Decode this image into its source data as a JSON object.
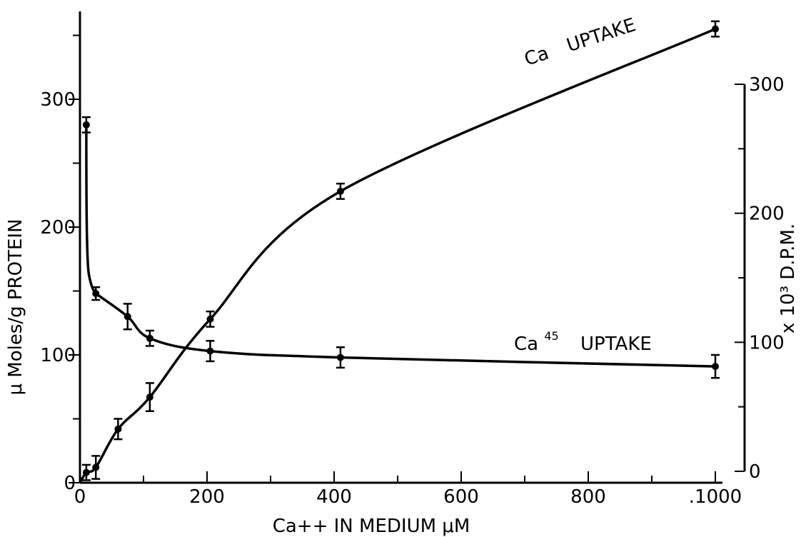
{
  "chart_data": {
    "type": "line",
    "xlabel": "Ca++ IN MEDIUM μM",
    "ylabel_left": "μ Moles/g PROTEIN",
    "ylabel_right": "x 10³ D.P.M.",
    "xlim": [
      0,
      1000
    ],
    "ylim_left": [
      0,
      360
    ],
    "ylim_right": [
      0,
      300
    ],
    "x_ticks": [
      "0",
      "200",
      "400",
      "600",
      "800",
      "1000"
    ],
    "x_ticks_display": [
      "0",
      "200",
      "400",
      "600",
      "800",
      ".1000"
    ],
    "y_left_ticks": [
      0,
      100,
      200,
      300
    ],
    "y_right_ticks": [
      0,
      100,
      200,
      300
    ],
    "grid": false,
    "series": [
      {
        "name": "Ca UPTAKE",
        "label_prefix": "Ca",
        "label_suffix": "UPTAKE",
        "axis": "left",
        "x": [
          10,
          25,
          60,
          110,
          205,
          410,
          1000
        ],
        "y": [
          8,
          12,
          42,
          67,
          128,
          228,
          355
        ],
        "err": [
          6,
          9,
          8,
          11,
          6,
          6,
          6
        ]
      },
      {
        "name": "Ca45 UPTAKE",
        "label_prefix": "Ca",
        "label_sup": "45",
        "label_suffix": "UPTAKE",
        "axis": "left",
        "x": [
          10,
          25,
          75,
          110,
          205,
          410,
          1000
        ],
        "y": [
          280,
          148,
          130,
          113,
          103,
          98,
          91
        ],
        "err": [
          6,
          5,
          10,
          6,
          8,
          8,
          9
        ]
      }
    ]
  }
}
